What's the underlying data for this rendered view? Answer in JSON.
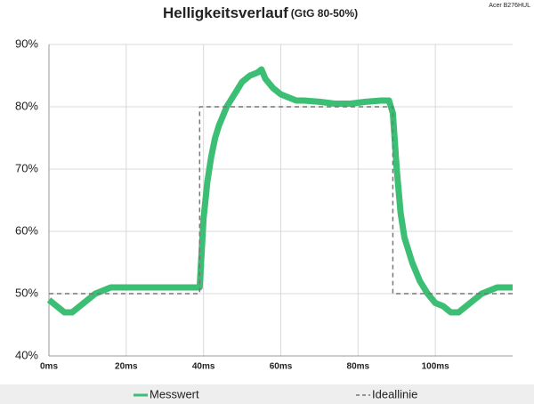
{
  "chart_data": {
    "type": "line",
    "title": "Helligkeitsverlauf",
    "subtitle": "(GtG 80-50%)",
    "annotation": "Acer B276HUL",
    "xlim": [
      0,
      120
    ],
    "xticks": [
      {
        "value": 0,
        "label": "0ms"
      },
      {
        "value": 20,
        "label": "20ms"
      },
      {
        "value": 40,
        "label": "40ms"
      },
      {
        "value": 60,
        "label": "60ms"
      },
      {
        "value": 80,
        "label": "80ms"
      },
      {
        "value": 100,
        "label": "100ms"
      }
    ],
    "ylim": [
      40,
      90
    ],
    "yticks": [
      {
        "value": 40,
        "label": "40%"
      },
      {
        "value": 50,
        "label": "50%"
      },
      {
        "value": 60,
        "label": "60%"
      },
      {
        "value": 70,
        "label": "70%"
      },
      {
        "value": 80,
        "label": "80%"
      },
      {
        "value": 90,
        "label": "90%"
      }
    ],
    "grid": true,
    "legend": "bottom",
    "series": [
      {
        "name": "Messwert",
        "color": "#3cbf74",
        "style": "solid",
        "x": [
          0,
          2,
          4,
          6,
          8,
          10,
          12,
          14,
          16,
          18,
          20,
          22,
          24,
          26,
          28,
          30,
          32,
          34,
          36,
          38,
          39,
          40,
          41,
          42,
          43,
          44,
          46,
          48,
          50,
          52,
          54,
          55,
          56,
          58,
          60,
          62,
          64,
          66,
          70,
          74,
          78,
          82,
          86,
          88,
          89,
          90,
          91,
          92,
          94,
          96,
          98,
          100,
          102,
          104,
          106,
          108,
          110,
          112,
          114,
          116,
          118,
          120
        ],
        "values": [
          49,
          48,
          47,
          47,
          48,
          49,
          50,
          50.5,
          51,
          51,
          51,
          51,
          51,
          51,
          51,
          51,
          51,
          51,
          51,
          51,
          51,
          62,
          68,
          72,
          75,
          77,
          80,
          82,
          84,
          85,
          85.5,
          86,
          84.5,
          83,
          82,
          81.5,
          81,
          81,
          80.8,
          80.5,
          80.5,
          80.8,
          81,
          81,
          79,
          70,
          63,
          59,
          55,
          52,
          50,
          48.5,
          48,
          47,
          47,
          48,
          49,
          50,
          50.5,
          51,
          51,
          51
        ]
      },
      {
        "name": "Ideallinie",
        "color": "#777777",
        "style": "dashed",
        "x": [
          0,
          39,
          39,
          89,
          89,
          120
        ],
        "values": [
          50,
          50,
          80,
          80,
          50,
          50
        ]
      }
    ]
  }
}
